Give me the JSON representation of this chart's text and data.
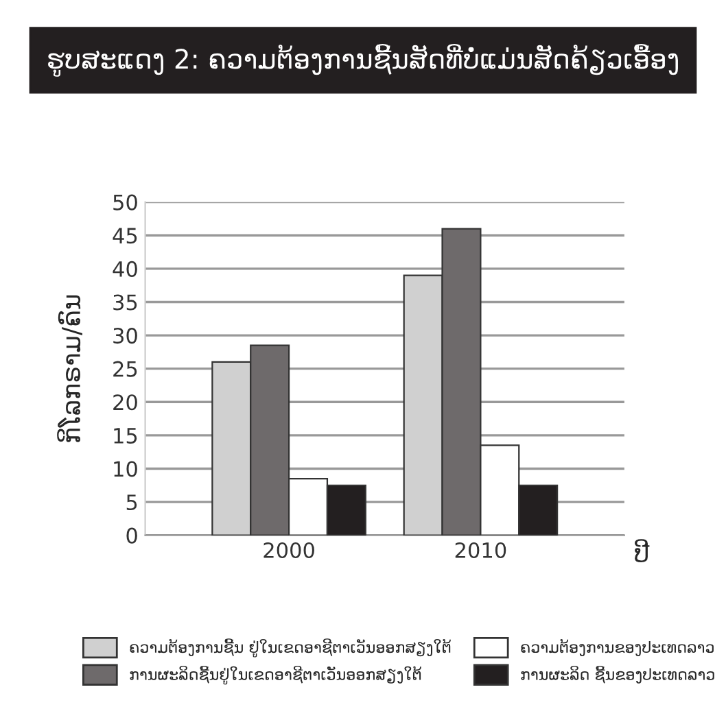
{
  "chart_data": {
    "type": "bar",
    "title": "ຮູບສະແດງ 2: ຄວາມຕ້ອງການຊີ້ນສັດທີ່ບໍ່ແມ່ນສັດຄ້ຽວເອື້ອງ",
    "xlabel": "ປີ",
    "ylabel": "ກິໂລກຣາມ/ຄົນ",
    "categories": [
      "2000",
      "2010"
    ],
    "series": [
      {
        "name": "ຄວາມຕ້ອງການຊີ້ນ ຢູ່ໃນເຂດອາຊີຕາເວັນອອກສຽງໃຕ້",
        "color": "#d0d0d0",
        "values": [
          26,
          39
        ]
      },
      {
        "name": "ການຜະລິດຊີ້ນຢູ່ໃນເຂດອາຊີຕາເວັນອອກສຽງໃຕ້",
        "color": "#6e6a6b",
        "values": [
          28.5,
          46
        ]
      },
      {
        "name": "ຄວາມຕ້ອງການຂອງປະເທດລາວ",
        "color": "#ffffff",
        "values": [
          8.5,
          13.5
        ]
      },
      {
        "name": "ການຜະລິດ ຊີ້ນຂອງປະເທດລາວ",
        "color": "#231f20",
        "values": [
          7.5,
          7.5
        ]
      }
    ],
    "ylim": [
      0,
      50
    ],
    "yticks": [
      0,
      5,
      10,
      15,
      20,
      25,
      30,
      35,
      40,
      45,
      50
    ],
    "grid": "y",
    "legend": "bottom"
  }
}
